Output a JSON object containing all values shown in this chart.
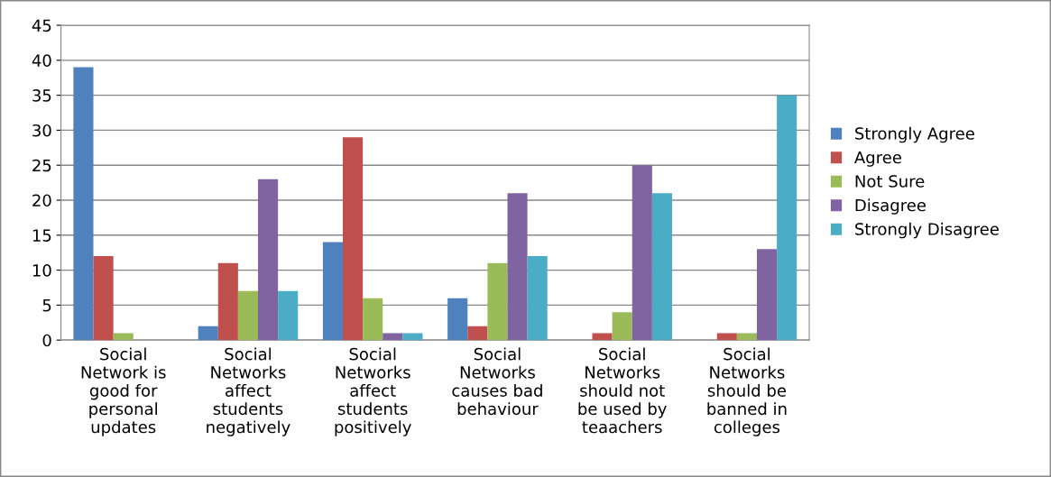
{
  "chart_data": {
    "type": "bar",
    "categories": [
      "Social\nNetwork is\ngood for\npersonal\nupdates",
      "Social\nNetworks\naffect\nstudents\nnegatively",
      "Social\nNetworks\naffect\nstudents\npositively",
      "Social\nNetworks\ncauses bad\nbehaviour",
      "Social\nNetworks\nshould not\nbe used by\nteaachers",
      "Social\nNetworks\nshould be\nbanned in\ncolleges"
    ],
    "series": [
      {
        "name": "Strongly Agree",
        "color": "#4f81bd",
        "values": [
          39,
          2,
          14,
          6,
          0,
          0
        ]
      },
      {
        "name": "Agree",
        "color": "#c0504d",
        "values": [
          12,
          11,
          29,
          2,
          1,
          1
        ]
      },
      {
        "name": "Not Sure",
        "color": "#9bbb59",
        "values": [
          1,
          7,
          6,
          11,
          4,
          1
        ]
      },
      {
        "name": "Disagree",
        "color": "#8064a2",
        "values": [
          0,
          23,
          1,
          21,
          25,
          13
        ]
      },
      {
        "name": "Strongly Disagree",
        "color": "#4bacc6",
        "values": [
          0,
          7,
          1,
          12,
          21,
          35
        ]
      }
    ],
    "ylim": [
      0,
      45
    ],
    "yticks": [
      0,
      5,
      10,
      15,
      20,
      25,
      30,
      35,
      40,
      45
    ],
    "grid": "y",
    "legend": "right"
  }
}
